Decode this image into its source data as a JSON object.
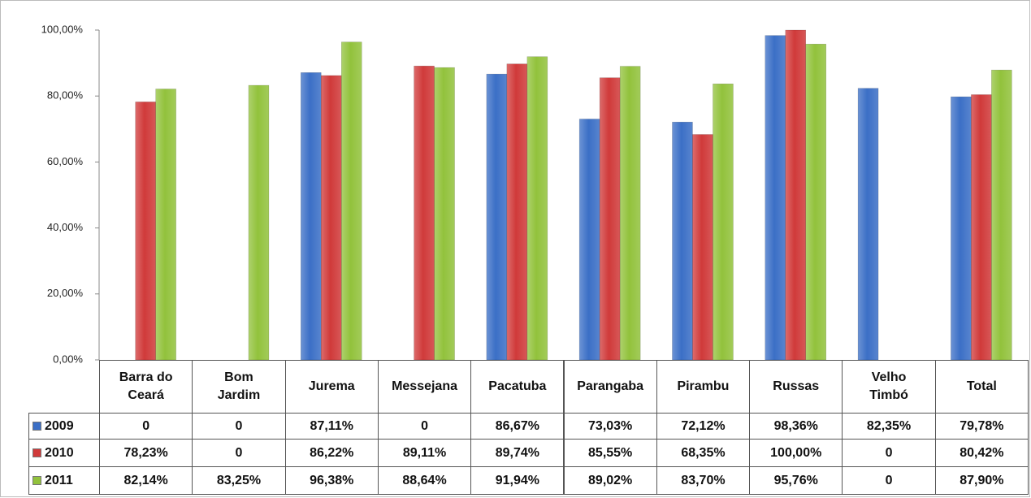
{
  "chart_data": {
    "type": "bar",
    "categories": [
      "Barra do Ceará",
      "Bom Jardim",
      "Jurema",
      "Messejana",
      "Pacatuba",
      "Parangaba",
      "Pirambu",
      "Russas",
      "Velho Timbó",
      "Total"
    ],
    "series": [
      {
        "name": "2009",
        "color": "#3b6fc6",
        "values": [
          0,
          0,
          87.11,
          0,
          86.67,
          73.03,
          72.12,
          98.36,
          82.35,
          79.78
        ],
        "value_labels": [
          "0",
          "0",
          "87,11%",
          "0",
          "86,67%",
          "73,03%",
          "72,12%",
          "98,36%",
          "82,35%",
          "79,78%"
        ]
      },
      {
        "name": "2010",
        "color": "#d03a3a",
        "values": [
          78.23,
          0,
          86.22,
          89.11,
          89.74,
          85.55,
          68.35,
          100,
          0,
          80.42
        ],
        "value_labels": [
          "78,23%",
          "0",
          "86,22%",
          "89,11%",
          "89,74%",
          "85,55%",
          "68,35%",
          "100,00%",
          "0",
          "80,42%"
        ]
      },
      {
        "name": "2011",
        "color": "#92c23c",
        "values": [
          82.14,
          83.25,
          96.38,
          88.64,
          91.94,
          89.02,
          83.7,
          95.76,
          0,
          87.9
        ],
        "value_labels": [
          "82,14%",
          "83,25%",
          "96,38%",
          "88,64%",
          "91,94%",
          "89,02%",
          "83,70%",
          "95,76%",
          "0",
          "87,90%"
        ]
      }
    ],
    "ylim": [
      0,
      100
    ],
    "yticks": [
      {
        "value": 0,
        "label": "0,00%"
      },
      {
        "value": 20,
        "label": "20,00%"
      },
      {
        "value": 40,
        "label": "40,00%"
      },
      {
        "value": 60,
        "label": "60,00%"
      },
      {
        "value": 80,
        "label": "80,00%"
      },
      {
        "value": 100,
        "label": "100,00%"
      }
    ],
    "grid": false
  }
}
